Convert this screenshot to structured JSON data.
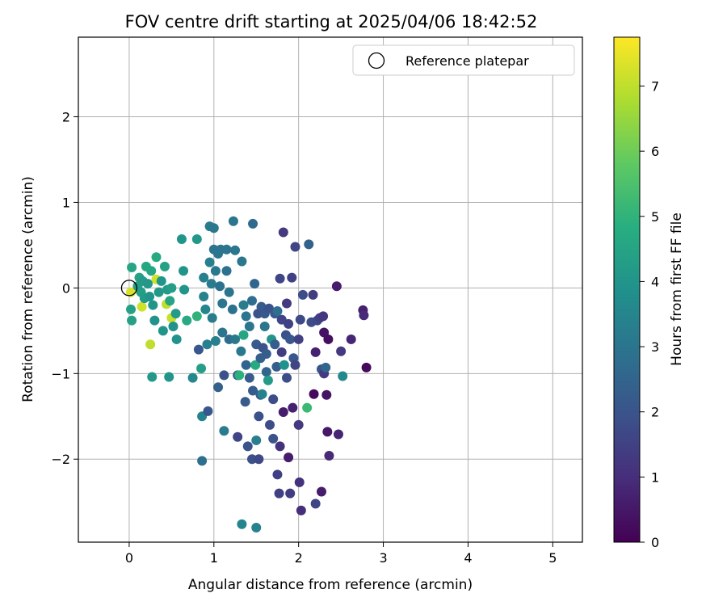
{
  "chart_data": {
    "type": "scatter",
    "title": "FOV centre drift starting at 2025/04/06 18:42:52",
    "xlabel": "Angular distance from reference (arcmin)",
    "ylabel": "Rotation from reference (arcmin)",
    "xlim": [
      -0.6,
      5.35
    ],
    "ylim": [
      -2.97,
      2.93
    ],
    "xticks": [
      0,
      1,
      2,
      3,
      4,
      5
    ],
    "yticks": [
      -2,
      -1,
      0,
      1,
      2
    ],
    "grid": true,
    "legend": {
      "placement": "top-right",
      "entries": [
        "Reference platepar"
      ]
    },
    "reference_point": {
      "x": 0,
      "y": 0,
      "marker": "open-circle",
      "label": "Reference platepar"
    },
    "colorbar": {
      "label": "Hours from first FF file",
      "colormap": "viridis",
      "range": [
        0,
        7.75
      ],
      "ticks": [
        0,
        1,
        2,
        3,
        4,
        5,
        6,
        7
      ]
    },
    "points": [
      {
        "x": 0.02,
        "y": -0.05,
        "h": 7.3
      },
      {
        "x": 0.15,
        "y": -0.22,
        "h": 7.2
      },
      {
        "x": 0.25,
        "y": -0.66,
        "h": 7.0
      },
      {
        "x": 0.32,
        "y": 0.1,
        "h": 7.2
      },
      {
        "x": 0.44,
        "y": -0.19,
        "h": 7.0
      },
      {
        "x": 0.5,
        "y": -0.35,
        "h": 7.1
      },
      {
        "x": 0.03,
        "y": 0.24,
        "h": 4.5
      },
      {
        "x": 0.02,
        "y": -0.25,
        "h": 4.4
      },
      {
        "x": 0.03,
        "y": -0.38,
        "h": 4.4
      },
      {
        "x": 0.1,
        "y": 0.02,
        "h": 4.3
      },
      {
        "x": 0.12,
        "y": 0.12,
        "h": 4.4
      },
      {
        "x": 0.14,
        "y": -0.05,
        "h": 4.3
      },
      {
        "x": 0.16,
        "y": 0.08,
        "h": 4.2
      },
      {
        "x": 0.18,
        "y": -0.12,
        "h": 4.2
      },
      {
        "x": 0.2,
        "y": 0.25,
        "h": 4.6
      },
      {
        "x": 0.22,
        "y": 0.05,
        "h": 4.1
      },
      {
        "x": 0.24,
        "y": -0.1,
        "h": 4.0
      },
      {
        "x": 0.26,
        "y": 0.2,
        "h": 4.6
      },
      {
        "x": 0.28,
        "y": -0.2,
        "h": 4.0
      },
      {
        "x": 0.3,
        "y": -0.38,
        "h": 3.9
      },
      {
        "x": 0.32,
        "y": 0.36,
        "h": 4.7
      },
      {
        "x": 0.35,
        "y": -0.05,
        "h": 4.1
      },
      {
        "x": 0.38,
        "y": 0.08,
        "h": 4.0
      },
      {
        "x": 0.4,
        "y": -0.5,
        "h": 4.0
      },
      {
        "x": 0.42,
        "y": 0.25,
        "h": 4.4
      },
      {
        "x": 0.45,
        "y": -0.02,
        "h": 4.2
      },
      {
        "x": 0.48,
        "y": -0.15,
        "h": 4.5
      },
      {
        "x": 0.5,
        "y": 0.0,
        "h": 4.3
      },
      {
        "x": 0.52,
        "y": -0.45,
        "h": 3.9
      },
      {
        "x": 0.55,
        "y": -0.3,
        "h": 4.2
      },
      {
        "x": 0.56,
        "y": -0.6,
        "h": 3.9
      },
      {
        "x": 0.62,
        "y": 0.57,
        "h": 4.0
      },
      {
        "x": 0.64,
        "y": 0.2,
        "h": 4.0
      },
      {
        "x": 0.65,
        "y": -0.02,
        "h": 4.0
      },
      {
        "x": 0.68,
        "y": -0.38,
        "h": 4.7
      },
      {
        "x": 0.27,
        "y": -1.04,
        "h": 4.1
      },
      {
        "x": 0.47,
        "y": -1.04,
        "h": 4.0
      },
      {
        "x": 0.75,
        "y": -1.05,
        "h": 3.6
      },
      {
        "x": 0.8,
        "y": -0.33,
        "h": 5.0
      },
      {
        "x": 0.8,
        "y": 0.57,
        "h": 4.1
      },
      {
        "x": 0.82,
        "y": -0.72,
        "h": 2.1
      },
      {
        "x": 0.85,
        "y": -0.94,
        "h": 4.3
      },
      {
        "x": 0.86,
        "y": -1.5,
        "h": 3.4
      },
      {
        "x": 0.86,
        "y": -2.02,
        "h": 2.8
      },
      {
        "x": 0.88,
        "y": -0.1,
        "h": 3.4
      },
      {
        "x": 0.88,
        "y": 0.12,
        "h": 3.3
      },
      {
        "x": 0.9,
        "y": -0.25,
        "h": 3.5
      },
      {
        "x": 0.92,
        "y": -0.66,
        "h": 3.3
      },
      {
        "x": 0.93,
        "y": -1.44,
        "h": 2.1
      },
      {
        "x": 0.95,
        "y": 0.3,
        "h": 3.3
      },
      {
        "x": 0.95,
        "y": 0.72,
        "h": 3.2
      },
      {
        "x": 0.97,
        "y": 0.05,
        "h": 3.2
      },
      {
        "x": 0.98,
        "y": -0.35,
        "h": 3.2
      },
      {
        "x": 1.0,
        "y": 0.7,
        "h": 3.1
      },
      {
        "x": 1.0,
        "y": 0.45,
        "h": 3.0
      },
      {
        "x": 1.02,
        "y": 0.2,
        "h": 3.1
      },
      {
        "x": 1.02,
        "y": -0.62,
        "h": 3.3
      },
      {
        "x": 1.05,
        "y": -1.16,
        "h": 2.4
      },
      {
        "x": 1.05,
        "y": 0.4,
        "h": 3.0
      },
      {
        "x": 1.07,
        "y": 0.02,
        "h": 2.9
      },
      {
        "x": 1.08,
        "y": 0.45,
        "h": 3.0
      },
      {
        "x": 1.1,
        "y": -0.18,
        "h": 3.0
      },
      {
        "x": 1.1,
        "y": -0.52,
        "h": 3.0
      },
      {
        "x": 1.12,
        "y": -1.02,
        "h": 2.0
      },
      {
        "x": 1.12,
        "y": -1.67,
        "h": 3.2
      },
      {
        "x": 1.15,
        "y": 0.45,
        "h": 3.0
      },
      {
        "x": 1.15,
        "y": 0.2,
        "h": 2.9
      },
      {
        "x": 1.18,
        "y": -0.05,
        "h": 3.0
      },
      {
        "x": 1.18,
        "y": -0.6,
        "h": 2.7
      },
      {
        "x": 1.22,
        "y": -0.25,
        "h": 2.9
      },
      {
        "x": 1.23,
        "y": 0.78,
        "h": 3.0
      },
      {
        "x": 1.25,
        "y": -0.6,
        "h": 3.1
      },
      {
        "x": 1.25,
        "y": 0.44,
        "h": 3.0
      },
      {
        "x": 1.28,
        "y": -1.02,
        "h": 2.0
      },
      {
        "x": 1.3,
        "y": -1.02,
        "h": 4.9
      },
      {
        "x": 1.28,
        "y": -1.74,
        "h": 1.6
      },
      {
        "x": 1.32,
        "y": -0.74,
        "h": 3.1
      },
      {
        "x": 1.33,
        "y": 0.31,
        "h": 3.1
      },
      {
        "x": 1.33,
        "y": -2.76,
        "h": 3.5
      },
      {
        "x": 1.35,
        "y": -0.2,
        "h": 3.2
      },
      {
        "x": 1.35,
        "y": -0.55,
        "h": 4.5
      },
      {
        "x": 1.37,
        "y": -1.33,
        "h": 2.2
      },
      {
        "x": 1.38,
        "y": -0.9,
        "h": 2.5
      },
      {
        "x": 1.38,
        "y": -0.33,
        "h": 3.0
      },
      {
        "x": 1.4,
        "y": -1.85,
        "h": 2.0
      },
      {
        "x": 1.42,
        "y": -1.05,
        "h": 2.2
      },
      {
        "x": 1.42,
        "y": -0.45,
        "h": 3.0
      },
      {
        "x": 1.45,
        "y": -0.15,
        "h": 2.8
      },
      {
        "x": 1.45,
        "y": -2.0,
        "h": 1.9
      },
      {
        "x": 1.46,
        "y": -1.2,
        "h": 2.2
      },
      {
        "x": 1.46,
        "y": 0.75,
        "h": 2.7
      },
      {
        "x": 1.48,
        "y": 0.05,
        "h": 2.5
      },
      {
        "x": 1.49,
        "y": -0.9,
        "h": 4.7
      },
      {
        "x": 1.5,
        "y": -0.66,
        "h": 2.2
      },
      {
        "x": 1.5,
        "y": -2.8,
        "h": 3.4
      },
      {
        "x": 1.5,
        "y": -1.78,
        "h": 3.3
      },
      {
        "x": 1.52,
        "y": -0.3,
        "h": 2.0
      },
      {
        "x": 1.53,
        "y": -1.5,
        "h": 1.9
      },
      {
        "x": 1.53,
        "y": -2.0,
        "h": 1.7
      },
      {
        "x": 1.55,
        "y": -0.82,
        "h": 2.4
      },
      {
        "x": 1.55,
        "y": -1.25,
        "h": 2.2
      },
      {
        "x": 1.56,
        "y": -0.22,
        "h": 2.2
      },
      {
        "x": 1.57,
        "y": -1.24,
        "h": 3.4
      },
      {
        "x": 1.58,
        "y": -0.7,
        "h": 2.0
      },
      {
        "x": 1.6,
        "y": -0.3,
        "h": 2.1
      },
      {
        "x": 1.6,
        "y": -0.45,
        "h": 3.0
      },
      {
        "x": 1.62,
        "y": -0.98,
        "h": 2.5
      },
      {
        "x": 1.62,
        "y": -0.77,
        "h": 2.3
      },
      {
        "x": 1.64,
        "y": -1.08,
        "h": 4.2
      },
      {
        "x": 1.65,
        "y": -0.24,
        "h": 2.0
      },
      {
        "x": 1.66,
        "y": -1.6,
        "h": 1.8
      },
      {
        "x": 1.68,
        "y": -0.6,
        "h": 4.0
      },
      {
        "x": 1.7,
        "y": -1.3,
        "h": 1.8
      },
      {
        "x": 1.7,
        "y": -1.76,
        "h": 2.0
      },
      {
        "x": 1.72,
        "y": -0.66,
        "h": 2.3
      },
      {
        "x": 1.72,
        "y": -0.3,
        "h": 2.1
      },
      {
        "x": 1.74,
        "y": -0.92,
        "h": 2.3
      },
      {
        "x": 1.75,
        "y": -2.18,
        "h": 1.5
      },
      {
        "x": 1.75,
        "y": -0.27,
        "h": 2.8
      },
      {
        "x": 1.77,
        "y": -2.4,
        "h": 1.5
      },
      {
        "x": 1.78,
        "y": -1.85,
        "h": 1.1
      },
      {
        "x": 1.78,
        "y": 0.11,
        "h": 1.6
      },
      {
        "x": 1.8,
        "y": -0.75,
        "h": 1.4
      },
      {
        "x": 1.8,
        "y": -0.37,
        "h": 1.6
      },
      {
        "x": 1.82,
        "y": -1.45,
        "h": 0.6
      },
      {
        "x": 1.82,
        "y": 0.65,
        "h": 1.3
      },
      {
        "x": 1.83,
        "y": -0.9,
        "h": 3.9
      },
      {
        "x": 1.85,
        "y": -0.55,
        "h": 1.9
      },
      {
        "x": 1.86,
        "y": -0.18,
        "h": 1.3
      },
      {
        "x": 1.86,
        "y": -1.05,
        "h": 1.8
      },
      {
        "x": 1.88,
        "y": -1.98,
        "h": 0.6
      },
      {
        "x": 1.88,
        "y": -0.42,
        "h": 1.5
      },
      {
        "x": 1.9,
        "y": -2.4,
        "h": 1.4
      },
      {
        "x": 1.9,
        "y": -0.6,
        "h": 2.1
      },
      {
        "x": 1.92,
        "y": 0.12,
        "h": 1.5
      },
      {
        "x": 1.93,
        "y": -1.4,
        "h": 0.7
      },
      {
        "x": 1.94,
        "y": -0.82,
        "h": 2.1
      },
      {
        "x": 1.96,
        "y": -0.9,
        "h": 1.6
      },
      {
        "x": 1.96,
        "y": 0.48,
        "h": 1.6
      },
      {
        "x": 2.0,
        "y": -0.6,
        "h": 1.5
      },
      {
        "x": 2.0,
        "y": -1.6,
        "h": 1.3
      },
      {
        "x": 2.01,
        "y": -2.27,
        "h": 1.1
      },
      {
        "x": 2.02,
        "y": -0.37,
        "h": 1.7
      },
      {
        "x": 2.03,
        "y": -2.6,
        "h": 1.0
      },
      {
        "x": 2.05,
        "y": -0.08,
        "h": 1.8
      },
      {
        "x": 2.1,
        "y": -1.4,
        "h": 5.2
      },
      {
        "x": 2.12,
        "y": 0.51,
        "h": 2.4
      },
      {
        "x": 2.15,
        "y": -0.4,
        "h": 1.8
      },
      {
        "x": 2.17,
        "y": -0.08,
        "h": 1.4
      },
      {
        "x": 2.18,
        "y": -1.24,
        "h": 0.2
      },
      {
        "x": 2.2,
        "y": -0.75,
        "h": 0.7
      },
      {
        "x": 2.2,
        "y": -2.52,
        "h": 1.6
      },
      {
        "x": 2.22,
        "y": -0.38,
        "h": 1.7
      },
      {
        "x": 2.25,
        "y": -0.35,
        "h": 1.5
      },
      {
        "x": 2.27,
        "y": -0.95,
        "h": 2.0
      },
      {
        "x": 2.27,
        "y": -2.38,
        "h": 0.6
      },
      {
        "x": 2.29,
        "y": -0.33,
        "h": 1.2
      },
      {
        "x": 2.3,
        "y": -0.52,
        "h": 0.4
      },
      {
        "x": 2.3,
        "y": -1.0,
        "h": 1.3
      },
      {
        "x": 2.32,
        "y": -0.93,
        "h": 2.5
      },
      {
        "x": 2.33,
        "y": -1.25,
        "h": 0.4
      },
      {
        "x": 2.34,
        "y": -1.68,
        "h": 0.5
      },
      {
        "x": 2.35,
        "y": -0.6,
        "h": 0.3
      },
      {
        "x": 2.36,
        "y": -1.96,
        "h": 0.9
      },
      {
        "x": 2.45,
        "y": 0.02,
        "h": 0.6
      },
      {
        "x": 2.47,
        "y": -1.71,
        "h": 0.8
      },
      {
        "x": 2.5,
        "y": -0.74,
        "h": 1.3
      },
      {
        "x": 2.52,
        "y": -1.03,
        "h": 3.6
      },
      {
        "x": 2.62,
        "y": -0.6,
        "h": 0.8
      },
      {
        "x": 2.76,
        "y": -0.26,
        "h": 0.7
      },
      {
        "x": 2.77,
        "y": -0.32,
        "h": 0.9
      },
      {
        "x": 2.8,
        "y": -0.93,
        "h": 0.2
      }
    ]
  }
}
